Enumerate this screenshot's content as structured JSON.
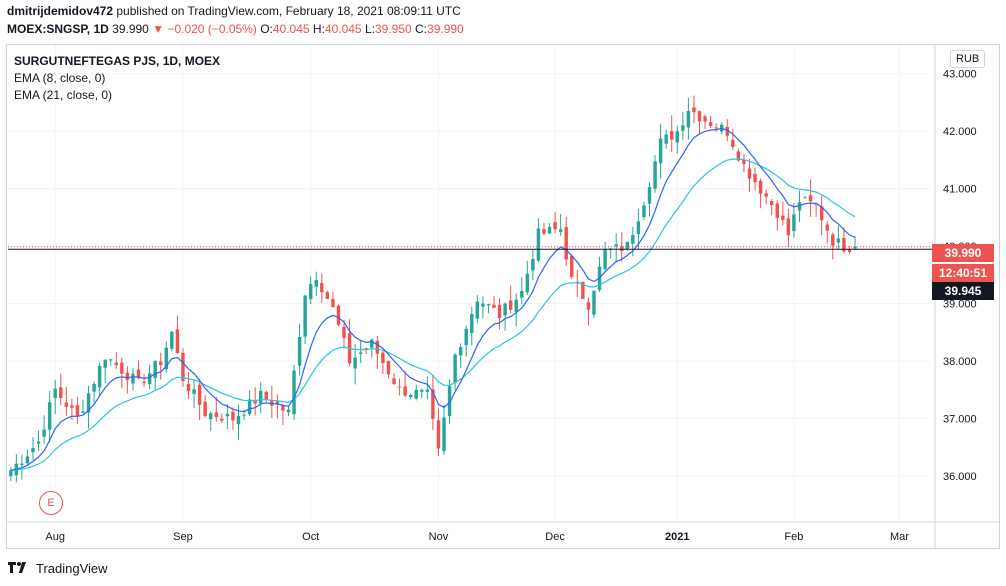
{
  "header": {
    "user": "dmitrijdemidov472",
    "published": "published on TradingView.com, February 18, 2021 08:09:11 UTC",
    "symbol": "MOEX:SNGSP, 1D",
    "price": "39.990",
    "change_arrow": "▼",
    "change": "−0.020 (−0.05%)",
    "o_label": "O:",
    "o_val": "40.045",
    "h_label": "H:",
    "h_val": "40.045",
    "l_label": "L:",
    "l_val": "39.950",
    "c_label": "C:",
    "c_val": "39.990"
  },
  "legend": {
    "title": "SURGUTNEFTEGAS PJS, 1D, MOEX",
    "ema8": "EMA (8, close, 0)",
    "ema21": "EMA (21, close, 0)"
  },
  "axis": {
    "currency": "RUB",
    "price_tag": "39.990",
    "countdown": "12:40:51",
    "crosshair_price": "39.945",
    "event_marker": "E"
  },
  "footer": {
    "logo_icon": "tradingview-logo-icon",
    "brand": "TradingView"
  },
  "colors": {
    "up": "#26a69a",
    "down": "#ef5350",
    "ema8": "#2962ff",
    "ema21": "#26c6da"
  },
  "chart_data": {
    "type": "candlestick",
    "title": "SURGUTNEFTEGAS PJS, 1D, MOEX",
    "ylim": [
      35.2,
      43.5
    ],
    "yticks": [
      36.0,
      37.0,
      38.0,
      39.0,
      40.0,
      41.0,
      42.0,
      43.0
    ],
    "ytick_labels": [
      "36.000",
      "37.000",
      "38.000",
      "39.000",
      "40.000",
      "41.000",
      "42.000",
      "43.000"
    ],
    "x_labels": [
      "Aug",
      "Sep",
      "Oct",
      "Nov",
      "Dec",
      "2021",
      "Feb",
      "Mar"
    ],
    "x_label_index": [
      8,
      31,
      54,
      77,
      98,
      120,
      141,
      160
    ],
    "total_slots": 166,
    "close_points": [
      [
        0,
        36.1
      ],
      [
        5,
        36.6
      ],
      [
        8,
        37.5
      ],
      [
        12,
        37.0
      ],
      [
        17,
        38.1
      ],
      [
        23,
        37.6
      ],
      [
        27,
        38.0
      ],
      [
        29,
        38.5
      ],
      [
        31,
        37.7
      ],
      [
        35,
        37.1
      ],
      [
        40,
        37.0
      ],
      [
        45,
        37.4
      ],
      [
        50,
        37.1
      ],
      [
        53,
        39.2
      ],
      [
        55,
        39.5
      ],
      [
        58,
        38.9
      ],
      [
        61,
        38.0
      ],
      [
        65,
        38.3
      ],
      [
        70,
        37.5
      ],
      [
        75,
        37.4
      ],
      [
        77,
        36.4
      ],
      [
        80,
        38.1
      ],
      [
        84,
        39.1
      ],
      [
        88,
        38.8
      ],
      [
        92,
        39.2
      ],
      [
        95,
        40.2
      ],
      [
        99,
        40.3
      ],
      [
        101,
        39.4
      ],
      [
        104,
        39.0
      ],
      [
        107,
        39.9
      ],
      [
        111,
        40.0
      ],
      [
        114,
        40.8
      ],
      [
        117,
        41.8
      ],
      [
        120,
        42.0
      ],
      [
        122,
        42.4
      ],
      [
        125,
        42.2
      ],
      [
        129,
        42.0
      ],
      [
        132,
        41.4
      ],
      [
        135,
        41.0
      ],
      [
        138,
        40.6
      ],
      [
        140,
        40.2
      ],
      [
        142,
        40.8
      ],
      [
        145,
        40.7
      ],
      [
        148,
        40.1
      ],
      [
        150,
        40.0
      ],
      [
        152,
        39.99
      ]
    ],
    "ema8_last": 40.25,
    "ema21_last": 40.6,
    "last_price": 39.99,
    "countdown": "12:40:51",
    "crosshair_price": 39.945
  }
}
